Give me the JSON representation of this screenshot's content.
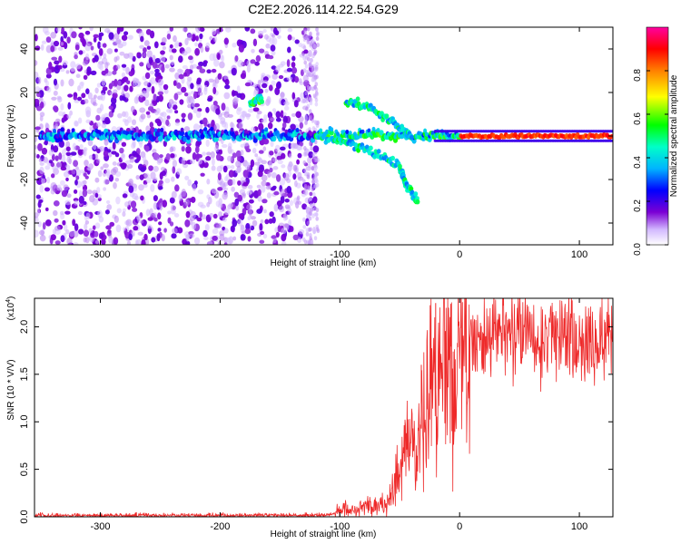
{
  "figure": {
    "title": "C2E2.2026.114.22.54.G29"
  },
  "chart_data": [
    {
      "type": "heatmap",
      "xlabel": "Height of straight line (km)",
      "ylabel": "Frequency (Hz)",
      "xlim": [
        -355,
        128
      ],
      "ylim": [
        -50,
        50
      ],
      "x_ticks": [
        -300,
        -200,
        -100,
        0,
        100
      ],
      "y_ticks": [
        -40,
        -20,
        0,
        20,
        40
      ],
      "colorbar": {
        "label": "Normalized spectral amplitude",
        "range": [
          0,
          1
        ],
        "ticks": [
          "0.0",
          "0.2",
          "0.4",
          "0.6",
          "0.8"
        ],
        "tick_values": [
          0.0,
          0.2,
          0.4,
          0.6,
          0.8
        ],
        "colormap": [
          "#ffffff",
          "#7b00d4",
          "#0000ff",
          "#00d8ff",
          "#00ff00",
          "#ffff00",
          "#ff8000",
          "#ff0000",
          "#ff00a0"
        ]
      },
      "features": [
        {
          "name": "noise_region",
          "x_range": [
            -355,
            -120
          ],
          "y_range": [
            -50,
            50
          ],
          "amplitude": 0.05
        },
        {
          "name": "carrier",
          "x_range": [
            -350,
            128
          ],
          "y": 0,
          "amplitude_start": 0.25,
          "amplitude_end": 0.9
        },
        {
          "name": "upper_branch",
          "points": [
            [
              -95,
              16
            ],
            [
              -75,
              13
            ],
            [
              -55,
              6
            ],
            [
              -40,
              0
            ]
          ],
          "amplitude": 0.3
        },
        {
          "name": "lower_branch",
          "points": [
            [
              -120,
              0
            ],
            [
              -95,
              -3
            ],
            [
              -70,
              -8
            ],
            [
              -50,
              -14
            ],
            [
              -45,
              -22
            ],
            [
              -35,
              -30
            ]
          ],
          "amplitude": 0.3
        },
        {
          "name": "bump",
          "points": [
            [
              -175,
              15
            ],
            [
              -165,
              17
            ]
          ],
          "amplitude": 0.35
        }
      ]
    },
    {
      "type": "line",
      "xlabel": "Height of straight line (km)",
      "ylabel": "SNR (10 * V/V)",
      "y_multiplier": "(x10",
      "y_multiplier_exp": "4",
      "xlim": [
        -355,
        128
      ],
      "ylim": [
        0,
        23000
      ],
      "x_ticks": [
        -300,
        -200,
        -100,
        0,
        100
      ],
      "y_ticks": [
        0,
        5000,
        10000,
        15000,
        20000
      ],
      "y_tick_labels": [
        "0.0",
        "0.5",
        "1.0",
        "1.5",
        "2.0"
      ],
      "series": [
        {
          "color": "#ee2a2a",
          "profile": [
            [
              -355,
              150
            ],
            [
              -110,
              150
            ],
            [
              -100,
              800
            ],
            [
              -80,
              1000
            ],
            [
              -60,
              1500
            ],
            [
              -50,
              5000
            ],
            [
              -45,
              6000
            ],
            [
              -35,
              8000
            ],
            [
              -28,
              11000
            ],
            [
              -20,
              13500
            ],
            [
              -10,
              15000
            ],
            [
              0,
              16000
            ],
            [
              10,
              17500
            ],
            [
              30,
              18800
            ],
            [
              60,
              18800
            ],
            [
              100,
              18800
            ],
            [
              128,
              18800
            ]
          ],
          "noise_fraction": 0.12,
          "spikes": [
            [
              -20,
              22500
            ],
            [
              -32,
              16000
            ],
            [
              -27,
              18000
            ]
          ]
        }
      ]
    }
  ]
}
